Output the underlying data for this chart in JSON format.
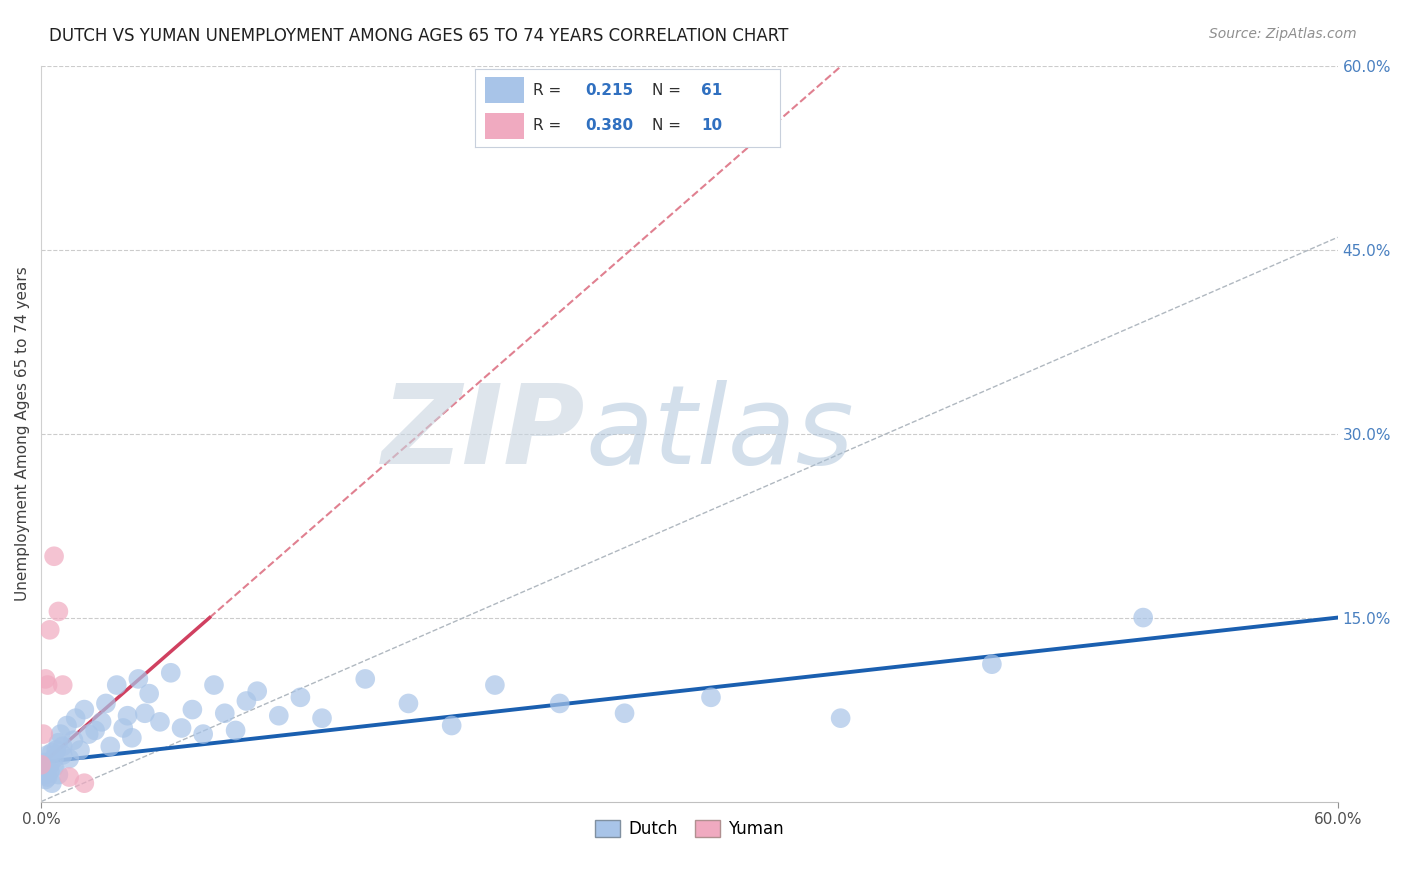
{
  "title": "DUTCH VS YUMAN UNEMPLOYMENT AMONG AGES 65 TO 74 YEARS CORRELATION CHART",
  "source": "Source: ZipAtlas.com",
  "ylabel": "Unemployment Among Ages 65 to 74 years",
  "xlim": [
    0.0,
    0.6
  ],
  "ylim": [
    0.0,
    0.6
  ],
  "ytick_right_vals": [
    0.15,
    0.3,
    0.45,
    0.6
  ],
  "ytick_right_labels": [
    "15.0%",
    "30.0%",
    "45.0%",
    "60.0%"
  ],
  "legend_R_dutch": "0.215",
  "legend_N_dutch": "61",
  "legend_R_yuman": "0.380",
  "legend_N_yuman": "10",
  "dutch_color": "#a8c4e8",
  "yuman_color": "#f0aac0",
  "dutch_line_color": "#1a5fb0",
  "yuman_line_color": "#d04060",
  "yuman_dash_color": "#e08090",
  "grid_color": "#cccccc",
  "dutch_x": [
    0.0,
    0.001,
    0.001,
    0.002,
    0.002,
    0.002,
    0.003,
    0.003,
    0.004,
    0.004,
    0.005,
    0.005,
    0.006,
    0.006,
    0.007,
    0.008,
    0.008,
    0.009,
    0.01,
    0.01,
    0.012,
    0.013,
    0.015,
    0.016,
    0.018,
    0.02,
    0.022,
    0.025,
    0.028,
    0.03,
    0.032,
    0.035,
    0.038,
    0.04,
    0.042,
    0.045,
    0.048,
    0.05,
    0.055,
    0.06,
    0.065,
    0.07,
    0.075,
    0.08,
    0.085,
    0.09,
    0.095,
    0.1,
    0.11,
    0.12,
    0.13,
    0.15,
    0.17,
    0.19,
    0.21,
    0.24,
    0.27,
    0.31,
    0.37,
    0.44,
    0.51
  ],
  "dutch_y": [
    0.03,
    0.028,
    0.025,
    0.022,
    0.032,
    0.018,
    0.02,
    0.038,
    0.025,
    0.03,
    0.015,
    0.04,
    0.028,
    0.035,
    0.042,
    0.022,
    0.048,
    0.055,
    0.038,
    0.045,
    0.062,
    0.035,
    0.05,
    0.068,
    0.042,
    0.075,
    0.055,
    0.058,
    0.065,
    0.08,
    0.045,
    0.095,
    0.06,
    0.07,
    0.052,
    0.1,
    0.072,
    0.088,
    0.065,
    0.105,
    0.06,
    0.075,
    0.055,
    0.095,
    0.072,
    0.058,
    0.082,
    0.09,
    0.07,
    0.085,
    0.068,
    0.1,
    0.08,
    0.062,
    0.095,
    0.08,
    0.072,
    0.085,
    0.068,
    0.112,
    0.15
  ],
  "yuman_x": [
    0.0,
    0.001,
    0.002,
    0.003,
    0.004,
    0.006,
    0.008,
    0.01,
    0.013,
    0.02
  ],
  "yuman_y": [
    0.03,
    0.055,
    0.1,
    0.095,
    0.14,
    0.2,
    0.155,
    0.095,
    0.02,
    0.015
  ],
  "watermark_zip": "ZIP",
  "watermark_atlas": "atlas",
  "background_color": "#ffffff",
  "title_fontsize": 12,
  "axis_label_fontsize": 11
}
